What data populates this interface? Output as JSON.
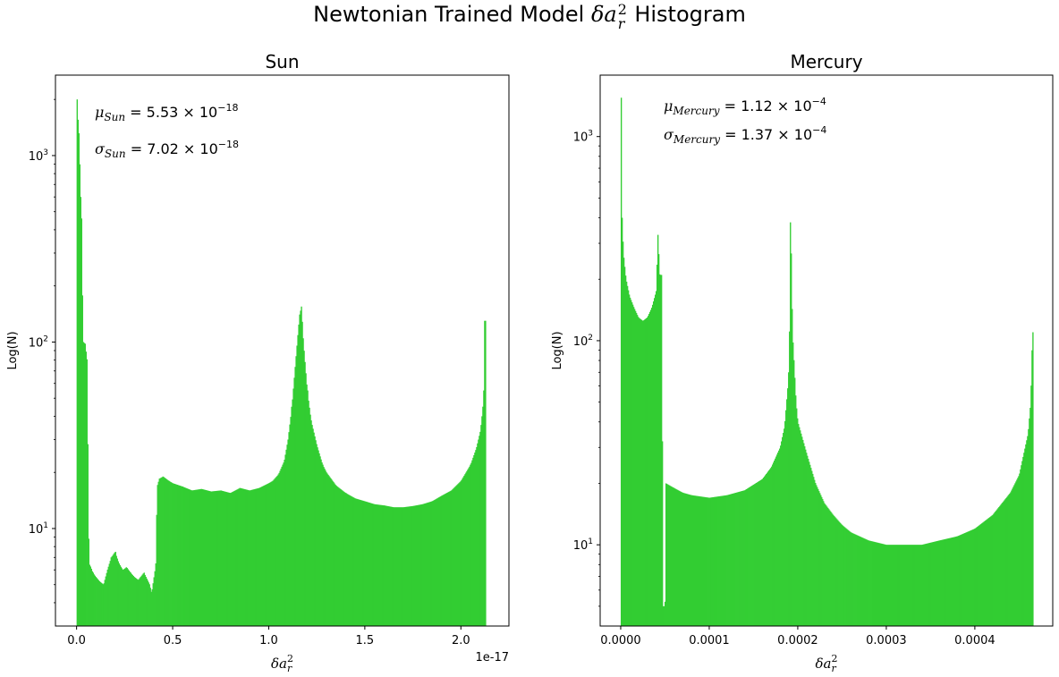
{
  "figure": {
    "title_text": "Newtonian Trained Model ",
    "title_math_base": "δa",
    "title_math_sub": "r",
    "title_math_sup": "2",
    "title_suffix": " Histogram"
  },
  "chart_data": [
    {
      "type": "bar",
      "title": "Sun",
      "xlabel_base": "δa",
      "xlabel_sub": "r",
      "xlabel_sup": "2",
      "ylabel": "Log(N)",
      "yscale": "log",
      "ylim": [
        3,
        2700
      ],
      "xlim": [
        -0.11,
        2.25
      ],
      "x_offset_text": "1e-17",
      "x_ticks": [
        0.0,
        0.5,
        1.0,
        1.5,
        2.0
      ],
      "x_tick_labels": [
        "0.0",
        "0.5",
        "1.0",
        "1.5",
        "2.0"
      ],
      "y_ticks": [
        10,
        100,
        1000
      ],
      "y_tick_base": "10",
      "y_tick_exps": [
        "1",
        "2",
        "3"
      ],
      "bar_color": "#32cd32",
      "grid": false,
      "annotations": [
        {
          "sym": "μ",
          "sub": "Sun",
          "value": "5.53",
          "exp": "−18"
        },
        {
          "sym": "σ",
          "sub": "Sun",
          "value": "7.02",
          "exp": "−18"
        }
      ],
      "bin_edges": [
        0.0,
        2.13
      ],
      "points": [
        [
          0.0,
          2000
        ],
        [
          0.012,
          1300
        ],
        [
          0.024,
          460
        ],
        [
          0.034,
          100
        ],
        [
          0.044,
          98
        ],
        [
          0.054,
          80
        ],
        [
          0.064,
          6.5
        ],
        [
          0.074,
          6.2
        ],
        [
          0.084,
          5.8
        ],
        [
          0.1,
          5.5
        ],
        [
          0.12,
          5.2
        ],
        [
          0.14,
          5
        ],
        [
          0.16,
          6
        ],
        [
          0.18,
          7
        ],
        [
          0.2,
          7.5
        ],
        [
          0.22,
          6.5
        ],
        [
          0.24,
          6
        ],
        [
          0.26,
          6.2
        ],
        [
          0.28,
          5.8
        ],
        [
          0.3,
          5.5
        ],
        [
          0.32,
          5.3
        ],
        [
          0.35,
          5.8
        ],
        [
          0.38,
          5
        ],
        [
          0.39,
          4.5
        ],
        [
          0.41,
          6.2
        ],
        [
          0.414,
          5
        ],
        [
          0.41,
          6.5
        ],
        [
          0.42,
          17
        ],
        [
          0.43,
          18.5
        ],
        [
          0.45,
          19
        ],
        [
          0.48,
          18
        ],
        [
          0.5,
          17.5
        ],
        [
          0.55,
          16.8
        ],
        [
          0.6,
          16
        ],
        [
          0.65,
          16.3
        ],
        [
          0.7,
          15.8
        ],
        [
          0.75,
          16
        ],
        [
          0.8,
          15.5
        ],
        [
          0.85,
          16.5
        ],
        [
          0.9,
          16
        ],
        [
          0.95,
          16.5
        ],
        [
          1.0,
          17.5
        ],
        [
          1.02,
          18
        ],
        [
          1.05,
          19.5
        ],
        [
          1.08,
          23
        ],
        [
          1.1,
          30
        ],
        [
          1.12,
          45
        ],
        [
          1.14,
          80
        ],
        [
          1.16,
          140
        ],
        [
          1.17,
          155
        ],
        [
          1.18,
          100
        ],
        [
          1.2,
          55
        ],
        [
          1.22,
          38
        ],
        [
          1.25,
          28
        ],
        [
          1.28,
          22
        ],
        [
          1.3,
          20
        ],
        [
          1.35,
          17
        ],
        [
          1.4,
          15.5
        ],
        [
          1.45,
          14.5
        ],
        [
          1.5,
          14
        ],
        [
          1.55,
          13.5
        ],
        [
          1.6,
          13.3
        ],
        [
          1.65,
          13
        ],
        [
          1.7,
          13
        ],
        [
          1.75,
          13.2
        ],
        [
          1.8,
          13.5
        ],
        [
          1.85,
          14
        ],
        [
          1.9,
          15
        ],
        [
          1.95,
          16
        ],
        [
          2.0,
          18
        ],
        [
          2.05,
          22
        ],
        [
          2.08,
          27
        ],
        [
          2.1,
          33
        ],
        [
          2.11,
          40
        ],
        [
          2.12,
          55
        ],
        [
          2.125,
          130
        ]
      ]
    },
    {
      "type": "bar",
      "title": "Mercury",
      "xlabel_base": "δa",
      "xlabel_sub": "r",
      "xlabel_sup": "2",
      "ylabel": "Log(N)",
      "yscale": "log",
      "ylim": [
        4,
        2000
      ],
      "xlim": [
        -2.32e-05,
        0.000488
      ],
      "x_ticks": [
        0.0,
        0.0001,
        0.0002,
        0.0003,
        0.0004
      ],
      "x_tick_labels": [
        "0.0000",
        "0.0001",
        "0.0002",
        "0.0003",
        "0.0004"
      ],
      "y_ticks": [
        10,
        100,
        1000
      ],
      "y_tick_base": "10",
      "y_tick_exps": [
        "1",
        "2",
        "3"
      ],
      "bar_color": "#32cd32",
      "grid": false,
      "annotations": [
        {
          "sym": "μ",
          "sub": "Mercury",
          "value": "1.12",
          "exp": "−4"
        },
        {
          "sym": "σ",
          "sub": "Mercury",
          "value": "1.37",
          "exp": "−4"
        }
      ],
      "bin_edges": [
        0.0,
        0.000466
      ],
      "points": [
        [
          0.0,
          1550
        ],
        [
          1.5e-06,
          400
        ],
        [
          3e-06,
          270
        ],
        [
          4.5e-06,
          230
        ],
        [
          6e-06,
          200
        ],
        [
          1e-05,
          165
        ],
        [
          1.5e-05,
          145
        ],
        [
          2e-05,
          130
        ],
        [
          2.5e-05,
          125
        ],
        [
          3e-05,
          130
        ],
        [
          3.5e-05,
          145
        ],
        [
          4e-05,
          175
        ],
        [
          4.2e-05,
          330
        ],
        [
          4.4e-05,
          210
        ],
        [
          4.6e-05,
          210
        ],
        [
          4.8e-05,
          5
        ],
        [
          5e-05,
          5
        ],
        [
          5.1e-05,
          20
        ],
        [
          6e-05,
          19
        ],
        [
          7e-05,
          18
        ],
        [
          8e-05,
          17.5
        ],
        [
          0.0001,
          17
        ],
        [
          0.00012,
          17.5
        ],
        [
          0.00014,
          18.5
        ],
        [
          0.00016,
          21
        ],
        [
          0.00017,
          24
        ],
        [
          0.00018,
          30
        ],
        [
          0.000185,
          38
        ],
        [
          0.00019,
          70
        ],
        [
          0.000192,
          380
        ],
        [
          0.000194,
          110
        ],
        [
          0.000198,
          50
        ],
        [
          0.0002,
          40
        ],
        [
          0.00021,
          28
        ],
        [
          0.00022,
          20
        ],
        [
          0.00023,
          16
        ],
        [
          0.00024,
          14
        ],
        [
          0.00025,
          12.5
        ],
        [
          0.00026,
          11.5
        ],
        [
          0.00028,
          10.5
        ],
        [
          0.0003,
          10
        ],
        [
          0.00032,
          10
        ],
        [
          0.00034,
          10
        ],
        [
          0.00036,
          10.5
        ],
        [
          0.00038,
          11
        ],
        [
          0.0004,
          12
        ],
        [
          0.00042,
          14
        ],
        [
          0.00044,
          18
        ],
        [
          0.00045,
          22
        ],
        [
          0.00046,
          35
        ],
        [
          0.000463,
          50
        ],
        [
          0.000465,
          110
        ]
      ]
    }
  ]
}
